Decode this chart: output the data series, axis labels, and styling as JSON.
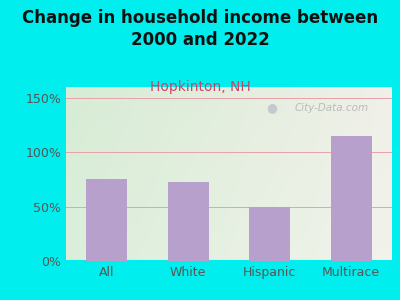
{
  "title": "Change in household income between\n2000 and 2022",
  "subtitle": "Hopkinton, NH",
  "categories": [
    "All",
    "White",
    "Hispanic",
    "Multirace"
  ],
  "values": [
    75,
    73,
    50,
    115
  ],
  "bar_color": "#b8a0cc",
  "background_color": "#00EEEE",
  "plot_bg_left": "#d6ecd4",
  "plot_bg_right": "#f0f0e8",
  "title_fontsize": 12,
  "subtitle_fontsize": 10,
  "subtitle_color": "#cc4466",
  "title_color": "#111111",
  "tick_label_color": "#555555",
  "yticks": [
    0,
    50,
    100,
    150
  ],
  "ylim": [
    0,
    160
  ],
  "grid_color": "#e8a0aa",
  "watermark": "City-Data.com"
}
